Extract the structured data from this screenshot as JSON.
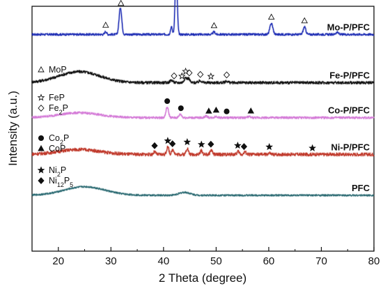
{
  "chart_data": {
    "type": "line",
    "xlabel": "2 Theta (degree)",
    "ylabel": "Intensity (a.u.)",
    "xlim": [
      15,
      80
    ],
    "x_ticks": [
      20,
      30,
      40,
      50,
      60,
      70,
      80
    ],
    "y_ticks": "none",
    "grid": false,
    "series": [
      {
        "name": "Mo-P/PFC",
        "color": "#1f2fb4",
        "baseline": 0.885,
        "hump": {
          "center": 25,
          "width": 6,
          "height": 0.0
        },
        "noise": 0.004,
        "peaks": [
          [
            29.0,
            0.012,
            0.25
          ],
          [
            31.8,
            0.11,
            0.35
          ],
          [
            41.5,
            0.03,
            0.25
          ],
          [
            42.4,
            0.265,
            0.28
          ],
          [
            49.6,
            0.01,
            0.3
          ],
          [
            60.5,
            0.045,
            0.4
          ],
          [
            66.8,
            0.03,
            0.35
          ],
          [
            73.0,
            0.008,
            0.4
          ]
        ],
        "markers": [
          {
            "symbol": "triangle-open",
            "x": [
              29.0,
              31.9,
              42.4,
              49.6,
              60.5,
              66.8
            ]
          }
        ]
      },
      {
        "name": "Fe-P/PFC",
        "color": "#111111",
        "baseline": 0.688,
        "hump": {
          "center": 24,
          "width": 5.5,
          "height": 0.045
        },
        "noise": 0.005,
        "peaks": [
          [
            41.5,
            0.01,
            0.4
          ],
          [
            44.2,
            0.02,
            0.4
          ],
          [
            44.8,
            0.015,
            0.3
          ],
          [
            47.0,
            0.008,
            0.4
          ],
          [
            52.0,
            0.006,
            0.4
          ]
        ],
        "markers": [
          {
            "symbol": "diamond-open",
            "x": [
              42.0,
              44.9,
              47.0,
              52.0
            ]
          },
          {
            "symbol": "star-open",
            "x": [
              43.5,
              44.2,
              49.0
            ]
          }
        ]
      },
      {
        "name": "Co-P/PFC",
        "color": "#d47ad8",
        "baseline": 0.545,
        "hump": {
          "center": 24,
          "width": 5.5,
          "height": 0.02
        },
        "noise": 0.004,
        "peaks": [
          [
            40.7,
            0.042,
            0.35
          ],
          [
            43.2,
            0.014,
            0.35
          ],
          [
            48.1,
            0.006,
            0.4
          ],
          [
            50.0,
            0.005,
            0.4
          ],
          [
            56.2,
            0.004,
            0.4
          ]
        ],
        "markers": [
          {
            "symbol": "circle-filled",
            "x": [
              40.7,
              43.3,
              52.0
            ]
          },
          {
            "symbol": "triangle-filled",
            "x": [
              48.6,
              50.0,
              56.6
            ]
          }
        ]
      },
      {
        "name": "Ni-P/PFC",
        "color": "#c0392b",
        "baseline": 0.395,
        "hump": {
          "center": 24,
          "width": 5.5,
          "height": 0.02
        },
        "noise": 0.006,
        "peaks": [
          [
            38.3,
            0.01,
            0.3
          ],
          [
            40.8,
            0.03,
            0.3
          ],
          [
            41.8,
            0.02,
            0.3
          ],
          [
            44.5,
            0.025,
            0.3
          ],
          [
            47.2,
            0.015,
            0.3
          ],
          [
            49.1,
            0.018,
            0.3
          ],
          [
            54.2,
            0.012,
            0.3
          ],
          [
            55.5,
            0.01,
            0.3
          ],
          [
            60.1,
            0.005,
            0.3
          ]
        ],
        "markers": [
          {
            "symbol": "diamond-filled",
            "x": [
              38.3,
              41.7,
              49.0,
              55.3
            ]
          },
          {
            "symbol": "star-filled",
            "x": [
              40.8,
              44.5,
              47.2,
              54.1,
              60.1,
              68.3
            ]
          }
        ]
      },
      {
        "name": "PFC",
        "color": "#2c6b72",
        "baseline": 0.228,
        "hump": {
          "center": 25,
          "width": 5.5,
          "height": 0.035
        },
        "noise": 0.003,
        "peaks": [
          [
            44.0,
            0.012,
            1.5
          ]
        ],
        "markers": []
      }
    ],
    "legends": [
      {
        "items": [
          {
            "symbol": "triangle-open",
            "label": "MoP"
          }
        ]
      },
      {
        "items": [
          {
            "symbol": "star-open",
            "label": "FeP"
          },
          {
            "symbol": "diamond-open",
            "label": "Fe2P"
          }
        ]
      },
      {
        "items": [
          {
            "symbol": "circle-filled",
            "label": "Co2P"
          },
          {
            "symbol": "triangle-filled",
            "label": "CoP"
          }
        ]
      },
      {
        "items": [
          {
            "symbol": "star-filled",
            "label": "Ni2P"
          },
          {
            "symbol": "diamond-filled",
            "label": "Ni12P5"
          }
        ]
      }
    ]
  }
}
